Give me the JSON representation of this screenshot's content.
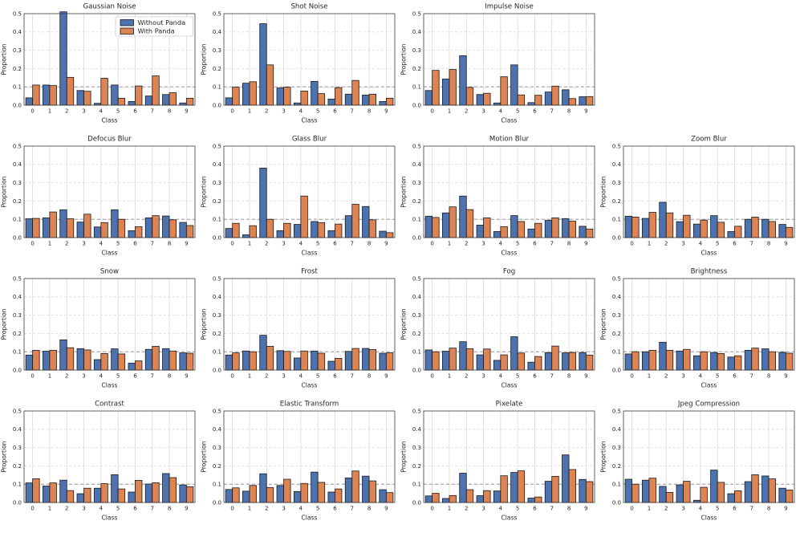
{
  "figure": {
    "ylabel": "Proportion",
    "xlabel": "Class",
    "yticks": [
      "0.0",
      "0.1",
      "0.2",
      "0.3",
      "0.4",
      "0.5"
    ],
    "categories": [
      "0",
      "1",
      "2",
      "3",
      "4",
      "5",
      "6",
      "7",
      "8",
      "9"
    ],
    "legend": {
      "position": "upper right",
      "entries": [
        "Without Panda",
        "With Panda"
      ]
    },
    "colors": {
      "without_panda": "#4C72B0",
      "with_panda": "#DD8452",
      "bar_edge": "#1a1a1a",
      "grid": "#d9d9d9",
      "reference_line": "#8a8a8a",
      "spine": "#3d3d3d",
      "legend_border": "#cccccc"
    }
  },
  "chart_data": [
    {
      "type": "bar",
      "title": "Gaussian Noise",
      "xlabel": "Class",
      "ylabel": "Proportion",
      "ylim": [
        0,
        0.5
      ],
      "grid": true,
      "reference_line": 0.1,
      "show_legend": true,
      "categories": [
        "0",
        "1",
        "2",
        "3",
        "4",
        "5",
        "6",
        "7",
        "8",
        "9"
      ],
      "series": [
        {
          "name": "Without Panda",
          "values": [
            0.04,
            0.11,
            0.51,
            0.08,
            0.01,
            0.11,
            0.02,
            0.05,
            0.058,
            0.012
          ]
        },
        {
          "name": "With Panda",
          "values": [
            0.11,
            0.107,
            0.152,
            0.076,
            0.147,
            0.038,
            0.105,
            0.16,
            0.068,
            0.038
          ]
        }
      ]
    },
    {
      "type": "bar",
      "title": "Shot Noise",
      "xlabel": "Class",
      "ylabel": "Proportion",
      "ylim": [
        0,
        0.5
      ],
      "grid": true,
      "reference_line": 0.1,
      "show_legend": false,
      "categories": [
        "0",
        "1",
        "2",
        "3",
        "4",
        "5",
        "6",
        "7",
        "8",
        "9"
      ],
      "series": [
        {
          "name": "Without Panda",
          "values": [
            0.04,
            0.12,
            0.445,
            0.094,
            0.012,
            0.13,
            0.033,
            0.06,
            0.055,
            0.02
          ]
        },
        {
          "name": "With Panda",
          "values": [
            0.098,
            0.128,
            0.22,
            0.098,
            0.077,
            0.063,
            0.096,
            0.135,
            0.06,
            0.038
          ]
        }
      ]
    },
    {
      "type": "bar",
      "title": "Impulse Noise",
      "xlabel": "Class",
      "ylabel": "Proportion",
      "ylim": [
        0,
        0.5
      ],
      "grid": true,
      "reference_line": 0.1,
      "show_legend": false,
      "categories": [
        "0",
        "1",
        "2",
        "3",
        "4",
        "5",
        "6",
        "7",
        "8",
        "9"
      ],
      "series": [
        {
          "name": "Without Panda",
          "values": [
            0.08,
            0.143,
            0.27,
            0.058,
            0.012,
            0.22,
            0.014,
            0.072,
            0.084,
            0.046
          ]
        },
        {
          "name": "With Panda",
          "values": [
            0.19,
            0.195,
            0.097,
            0.065,
            0.155,
            0.056,
            0.054,
            0.104,
            0.036,
            0.047
          ]
        }
      ]
    },
    {
      "type": "bar",
      "title": "Defocus Blur",
      "xlabel": "Class",
      "ylabel": "Proportion",
      "ylim": [
        0,
        0.5
      ],
      "grid": true,
      "reference_line": 0.1,
      "show_legend": false,
      "categories": [
        "0",
        "1",
        "2",
        "3",
        "4",
        "5",
        "6",
        "7",
        "8",
        "9"
      ],
      "series": [
        {
          "name": "Without Panda",
          "values": [
            0.103,
            0.108,
            0.152,
            0.085,
            0.058,
            0.152,
            0.038,
            0.108,
            0.118,
            0.083
          ]
        },
        {
          "name": "With Panda",
          "values": [
            0.105,
            0.14,
            0.103,
            0.128,
            0.082,
            0.1,
            0.06,
            0.12,
            0.097,
            0.066
          ]
        }
      ]
    },
    {
      "type": "bar",
      "title": "Glass Blur",
      "xlabel": "Class",
      "ylabel": "Proportion",
      "ylim": [
        0,
        0.5
      ],
      "grid": true,
      "reference_line": 0.1,
      "show_legend": false,
      "categories": [
        "0",
        "1",
        "2",
        "3",
        "4",
        "5",
        "6",
        "7",
        "8",
        "9"
      ],
      "series": [
        {
          "name": "Without Panda",
          "values": [
            0.05,
            0.015,
            0.38,
            0.038,
            0.072,
            0.088,
            0.038,
            0.12,
            0.17,
            0.035
          ]
        },
        {
          "name": "With Panda",
          "values": [
            0.078,
            0.065,
            0.1,
            0.078,
            0.227,
            0.082,
            0.074,
            0.182,
            0.097,
            0.027
          ]
        }
      ]
    },
    {
      "type": "bar",
      "title": "Motion Blur",
      "xlabel": "Class",
      "ylabel": "Proportion",
      "ylim": [
        0,
        0.5
      ],
      "grid": true,
      "reference_line": 0.1,
      "show_legend": false,
      "categories": [
        "0",
        "1",
        "2",
        "3",
        "4",
        "5",
        "6",
        "7",
        "8",
        "9"
      ],
      "series": [
        {
          "name": "Without Panda",
          "values": [
            0.117,
            0.135,
            0.227,
            0.068,
            0.033,
            0.12,
            0.047,
            0.094,
            0.104,
            0.062
          ]
        },
        {
          "name": "With Panda",
          "values": [
            0.11,
            0.168,
            0.153,
            0.108,
            0.06,
            0.088,
            0.078,
            0.108,
            0.09,
            0.047
          ]
        }
      ]
    },
    {
      "type": "bar",
      "title": "Zoom Blur",
      "xlabel": "Class",
      "ylabel": "Proportion",
      "ylim": [
        0,
        0.5
      ],
      "grid": true,
      "reference_line": 0.1,
      "show_legend": false,
      "categories": [
        "0",
        "1",
        "2",
        "3",
        "4",
        "5",
        "6",
        "7",
        "8",
        "9"
      ],
      "series": [
        {
          "name": "Without Panda",
          "values": [
            0.117,
            0.105,
            0.193,
            0.087,
            0.074,
            0.12,
            0.033,
            0.1,
            0.1,
            0.072
          ]
        },
        {
          "name": "With Panda",
          "values": [
            0.112,
            0.138,
            0.135,
            0.122,
            0.096,
            0.084,
            0.062,
            0.112,
            0.088,
            0.056
          ]
        }
      ]
    },
    {
      "type": "bar",
      "title": "Snow",
      "xlabel": "Class",
      "ylabel": "Proportion",
      "ylim": [
        0,
        0.5
      ],
      "grid": true,
      "reference_line": 0.1,
      "show_legend": false,
      "categories": [
        "0",
        "1",
        "2",
        "3",
        "4",
        "5",
        "6",
        "7",
        "8",
        "9"
      ],
      "series": [
        {
          "name": "Without Panda",
          "values": [
            0.082,
            0.103,
            0.165,
            0.117,
            0.057,
            0.116,
            0.038,
            0.113,
            0.117,
            0.094
          ]
        },
        {
          "name": "With Panda",
          "values": [
            0.108,
            0.108,
            0.122,
            0.11,
            0.09,
            0.088,
            0.05,
            0.13,
            0.104,
            0.092
          ]
        }
      ]
    },
    {
      "type": "bar",
      "title": "Frost",
      "xlabel": "Class",
      "ylabel": "Proportion",
      "ylim": [
        0,
        0.5
      ],
      "grid": true,
      "reference_line": 0.1,
      "show_legend": false,
      "categories": [
        "0",
        "1",
        "2",
        "3",
        "4",
        "5",
        "6",
        "7",
        "8",
        "9"
      ],
      "series": [
        {
          "name": "Without Panda",
          "values": [
            0.082,
            0.104,
            0.19,
            0.106,
            0.066,
            0.104,
            0.048,
            0.102,
            0.118,
            0.092
          ]
        },
        {
          "name": "With Panda",
          "values": [
            0.094,
            0.1,
            0.13,
            0.102,
            0.104,
            0.092,
            0.064,
            0.118,
            0.112,
            0.094
          ]
        }
      ]
    },
    {
      "type": "bar",
      "title": "Fog",
      "xlabel": "Class",
      "ylabel": "Proportion",
      "ylim": [
        0,
        0.5
      ],
      "grid": true,
      "reference_line": 0.1,
      "show_legend": false,
      "categories": [
        "0",
        "1",
        "2",
        "3",
        "4",
        "5",
        "6",
        "7",
        "8",
        "9"
      ],
      "series": [
        {
          "name": "Without Panda",
          "values": [
            0.11,
            0.103,
            0.155,
            0.083,
            0.053,
            0.182,
            0.043,
            0.095,
            0.094,
            0.096
          ]
        },
        {
          "name": "With Panda",
          "values": [
            0.1,
            0.12,
            0.117,
            0.115,
            0.083,
            0.093,
            0.074,
            0.131,
            0.096,
            0.082
          ]
        }
      ]
    },
    {
      "type": "bar",
      "title": "Brightness",
      "xlabel": "Class",
      "ylabel": "Proportion",
      "ylim": [
        0,
        0.5
      ],
      "grid": true,
      "reference_line": 0.1,
      "show_legend": false,
      "categories": [
        "0",
        "1",
        "2",
        "3",
        "4",
        "5",
        "6",
        "7",
        "8",
        "9"
      ],
      "series": [
        {
          "name": "Without Panda",
          "values": [
            0.088,
            0.1,
            0.152,
            0.104,
            0.078,
            0.096,
            0.071,
            0.108,
            0.116,
            0.097
          ]
        },
        {
          "name": "With Panda",
          "values": [
            0.1,
            0.108,
            0.108,
            0.113,
            0.1,
            0.09,
            0.078,
            0.12,
            0.1,
            0.092
          ]
        }
      ]
    },
    {
      "type": "bar",
      "title": "Contrast",
      "xlabel": "Class",
      "ylabel": "Proportion",
      "ylim": [
        0,
        0.5
      ],
      "grid": true,
      "reference_line": 0.1,
      "show_legend": false,
      "categories": [
        "0",
        "1",
        "2",
        "3",
        "4",
        "5",
        "6",
        "7",
        "8",
        "9"
      ],
      "series": [
        {
          "name": "Without Panda",
          "values": [
            0.107,
            0.09,
            0.122,
            0.048,
            0.078,
            0.152,
            0.057,
            0.101,
            0.158,
            0.096
          ]
        },
        {
          "name": "With Panda",
          "values": [
            0.13,
            0.107,
            0.065,
            0.078,
            0.103,
            0.074,
            0.121,
            0.108,
            0.136,
            0.086
          ]
        }
      ]
    },
    {
      "type": "bar",
      "title": "Elastic Transform",
      "xlabel": "Class",
      "ylabel": "Proportion",
      "ylim": [
        0,
        0.5
      ],
      "grid": true,
      "reference_line": 0.1,
      "show_legend": false,
      "categories": [
        "0",
        "1",
        "2",
        "3",
        "4",
        "5",
        "6",
        "7",
        "8",
        "9"
      ],
      "series": [
        {
          "name": "Without Panda",
          "values": [
            0.071,
            0.062,
            0.157,
            0.093,
            0.06,
            0.166,
            0.057,
            0.134,
            0.144,
            0.07
          ]
        },
        {
          "name": "With Panda",
          "values": [
            0.08,
            0.093,
            0.082,
            0.127,
            0.104,
            0.11,
            0.074,
            0.172,
            0.118,
            0.054
          ]
        }
      ]
    },
    {
      "type": "bar",
      "title": "Pixelate",
      "xlabel": "Class",
      "ylabel": "Proportion",
      "ylim": [
        0,
        0.5
      ],
      "grid": true,
      "reference_line": 0.1,
      "show_legend": false,
      "categories": [
        "0",
        "1",
        "2",
        "3",
        "4",
        "5",
        "6",
        "7",
        "8",
        "9"
      ],
      "series": [
        {
          "name": "Without Panda",
          "values": [
            0.036,
            0.022,
            0.16,
            0.037,
            0.063,
            0.164,
            0.024,
            0.116,
            0.26,
            0.126
          ]
        },
        {
          "name": "With Panda",
          "values": [
            0.05,
            0.038,
            0.07,
            0.065,
            0.146,
            0.173,
            0.03,
            0.143,
            0.18,
            0.114
          ]
        }
      ]
    },
    {
      "type": "bar",
      "title": "Jpeg Compression",
      "xlabel": "Class",
      "ylabel": "Proportion",
      "ylim": [
        0,
        0.5
      ],
      "grid": true,
      "reference_line": 0.1,
      "show_legend": false,
      "categories": [
        "0",
        "1",
        "2",
        "3",
        "4",
        "5",
        "6",
        "7",
        "8",
        "9"
      ],
      "series": [
        {
          "name": "Without Panda",
          "values": [
            0.127,
            0.122,
            0.088,
            0.096,
            0.012,
            0.177,
            0.048,
            0.114,
            0.145,
            0.078
          ]
        },
        {
          "name": "With Panda",
          "values": [
            0.1,
            0.133,
            0.055,
            0.116,
            0.083,
            0.11,
            0.064,
            0.152,
            0.129,
            0.068
          ]
        }
      ]
    }
  ]
}
